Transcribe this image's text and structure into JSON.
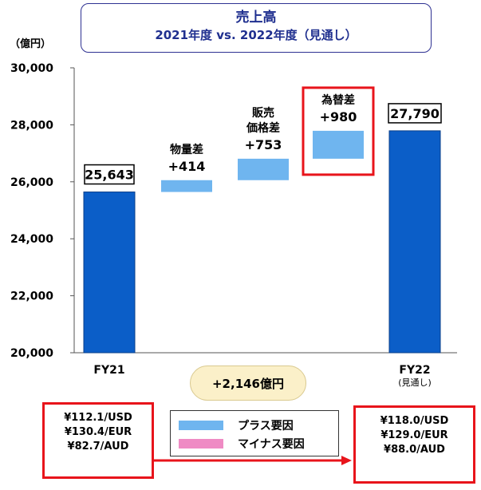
{
  "title": {
    "main": "売上高",
    "sub": "2021年度 vs. 2022年度（見通し）"
  },
  "unit_label": "（億円）",
  "colors": {
    "total_bar": "#0b5ec8",
    "total_bar_stroke": "#0a3f8a",
    "plus_factor": "#6fb5ef",
    "minus_factor": "#ef8bc4",
    "highlight": "#e8141b",
    "title_text": "#1f2f8f"
  },
  "chart_data": {
    "type": "bar",
    "subtype": "waterfall",
    "ylim": [
      20000,
      30000
    ],
    "yticks": [
      20000,
      22000,
      24000,
      26000,
      28000,
      30000
    ],
    "ytick_labels": [
      "20,000",
      "22,000",
      "24,000",
      "26,000",
      "28,000",
      "30,000"
    ],
    "bars": [
      {
        "key": "fy21",
        "kind": "total",
        "start": 20000,
        "end": 25643,
        "value_label": "25,643",
        "boxed": true,
        "label_lines": [],
        "category": "FY21",
        "category_sub": ""
      },
      {
        "key": "volume",
        "kind": "plus",
        "start": 25643,
        "end": 26057,
        "value_label": "+414",
        "boxed": false,
        "label_lines": [
          "物量差"
        ],
        "category": "",
        "category_sub": ""
      },
      {
        "key": "price",
        "kind": "plus",
        "start": 26057,
        "end": 26810,
        "value_label": "+753",
        "boxed": false,
        "label_lines": [
          "販売",
          "価格差"
        ],
        "category": "",
        "category_sub": ""
      },
      {
        "key": "fx",
        "kind": "plus",
        "start": 26810,
        "end": 27790,
        "value_label": "+980",
        "boxed": false,
        "highlight": true,
        "label_lines": [
          "為替差"
        ],
        "category": "",
        "category_sub": ""
      },
      {
        "key": "fy22",
        "kind": "total",
        "start": 20000,
        "end": 27790,
        "value_label": "27,790",
        "boxed": true,
        "label_lines": [],
        "category": "FY22",
        "category_sub": "(見通し)"
      }
    ]
  },
  "total_change": "+2,146億円",
  "legend": {
    "plus": "プラス要因",
    "minus": "マイナス要因"
  },
  "rates_fy21": [
    "¥112.1/USD",
    "¥130.4/EUR",
    "¥82.7/AUD"
  ],
  "rates_fy22": [
    "¥118.0/USD",
    "¥129.0/EUR",
    "¥88.0/AUD"
  ]
}
